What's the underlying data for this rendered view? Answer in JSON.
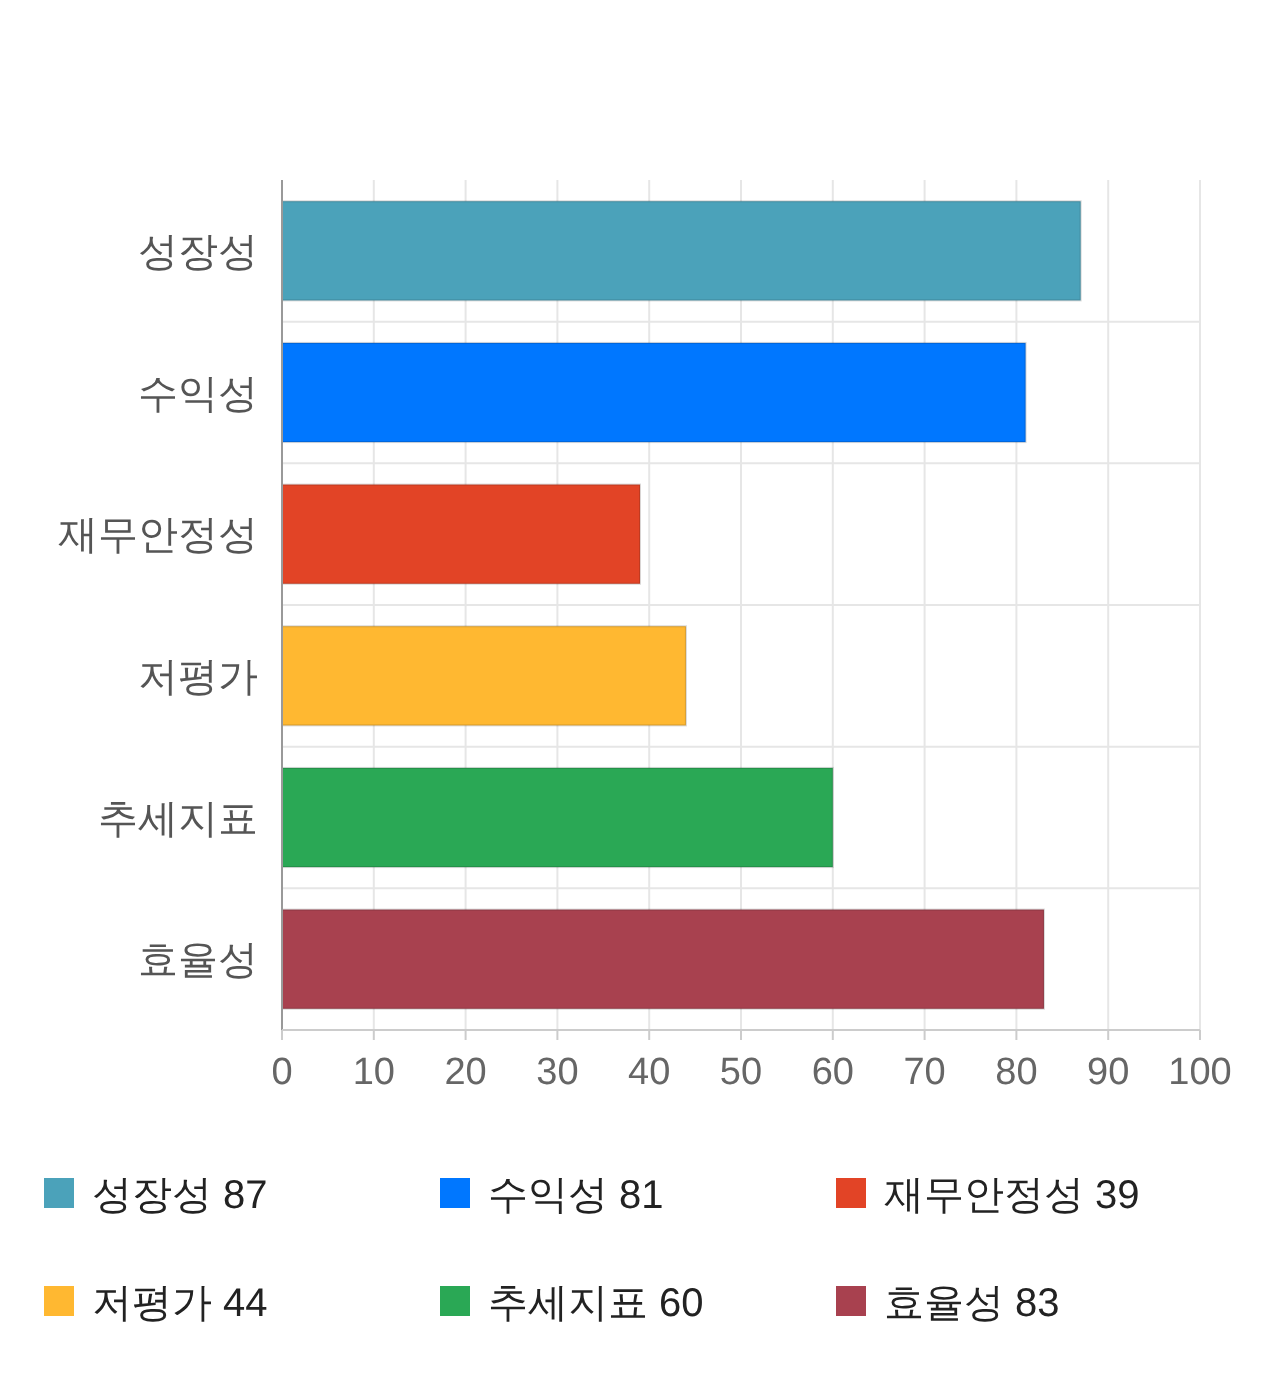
{
  "chart_data": {
    "type": "bar",
    "orientation": "horizontal",
    "stacked": true,
    "categories": [
      "성장성",
      "수익성",
      "재무안정성",
      "저평가",
      "추세지표",
      "효율성"
    ],
    "series": [
      {
        "name": "성장성 87",
        "color": "#4ba2ba",
        "values": [
          87,
          null,
          null,
          null,
          null,
          null
        ]
      },
      {
        "name": "수익성 81",
        "color": "#0077ff",
        "values": [
          null,
          81,
          null,
          null,
          null,
          null
        ]
      },
      {
        "name": "재무안정성 39",
        "color": "#e24426",
        "values": [
          null,
          null,
          39,
          null,
          null,
          null
        ]
      },
      {
        "name": "저평가 44",
        "color": "#ffb831",
        "values": [
          null,
          null,
          null,
          44,
          null,
          null
        ]
      },
      {
        "name": "추세지표 60",
        "color": "#2aa855",
        "values": [
          null,
          null,
          null,
          null,
          60,
          null
        ]
      },
      {
        "name": "효율성 83",
        "color": "#a8414f",
        "values": [
          null,
          null,
          null,
          null,
          null,
          83
        ]
      }
    ],
    "xlim": [
      0,
      100
    ],
    "xticks": [
      0,
      10,
      20,
      30,
      40,
      50,
      60,
      70,
      80,
      90,
      100
    ],
    "grid": true,
    "legend": "bottom"
  }
}
